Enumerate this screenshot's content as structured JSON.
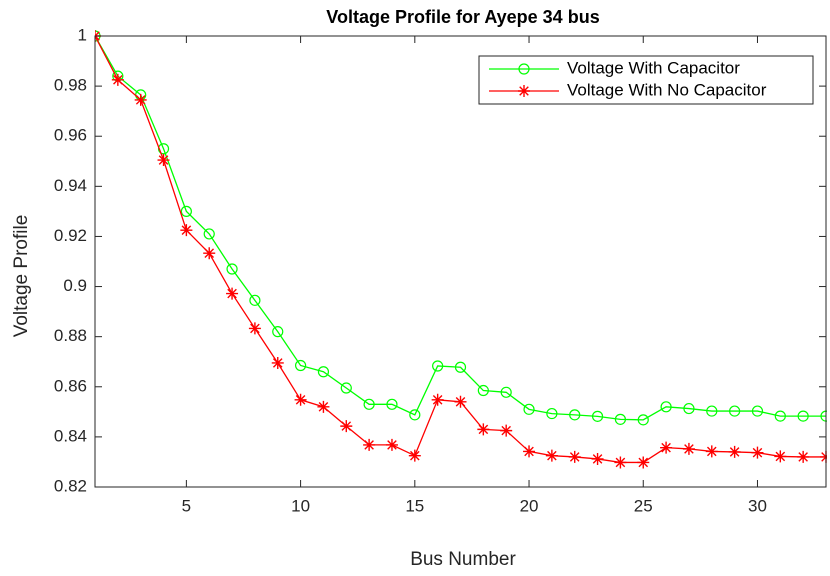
{
  "chart_data": {
    "type": "line",
    "title": "Voltage Profile for Ayepe 34 bus",
    "xlabel": "Bus Number",
    "ylabel": "Voltage Profile",
    "x": [
      1,
      2,
      3,
      4,
      5,
      6,
      7,
      8,
      9,
      10,
      11,
      12,
      13,
      14,
      15,
      16,
      17,
      18,
      19,
      20,
      21,
      22,
      23,
      24,
      25,
      26,
      27,
      28,
      29,
      30,
      31,
      32,
      33
    ],
    "series": [
      {
        "name": "Voltage With Capacitor",
        "color": "#00ff00",
        "marker": "circle",
        "values": [
          1,
          0.984,
          0.9765,
          0.955,
          0.93,
          0.921,
          0.907,
          0.8945,
          0.882,
          0.8685,
          0.866,
          0.8595,
          0.853,
          0.853,
          0.8488,
          0.8683,
          0.8678,
          0.8585,
          0.8578,
          0.851,
          0.8493,
          0.8488,
          0.8482,
          0.847,
          0.8468,
          0.852,
          0.8513,
          0.8503,
          0.8503,
          0.8503,
          0.8483,
          0.8483,
          0.8483
        ]
      },
      {
        "name": "Voltage With No Capacitor",
        "color": "#ff0000",
        "marker": "asterisk",
        "values": [
          1,
          0.9825,
          0.9745,
          0.9505,
          0.9225,
          0.9133,
          0.8972,
          0.8833,
          0.8695,
          0.8548,
          0.852,
          0.8443,
          0.8368,
          0.8368,
          0.8325,
          0.8548,
          0.854,
          0.843,
          0.8425,
          0.8342,
          0.8325,
          0.832,
          0.8312,
          0.8298,
          0.8298,
          0.8357,
          0.8352,
          0.8342,
          0.834,
          0.8337,
          0.8322,
          0.832,
          0.832
        ]
      }
    ],
    "xlim": [
      1,
      33
    ],
    "xticks": [
      5,
      10,
      15,
      20,
      25,
      30
    ],
    "ylim": [
      0.82,
      1
    ],
    "yticks": [
      0.82,
      0.84,
      0.86,
      0.88,
      0.9,
      0.92,
      0.94,
      0.96,
      0.98,
      1
    ],
    "grid": false,
    "legend": "northeast"
  }
}
